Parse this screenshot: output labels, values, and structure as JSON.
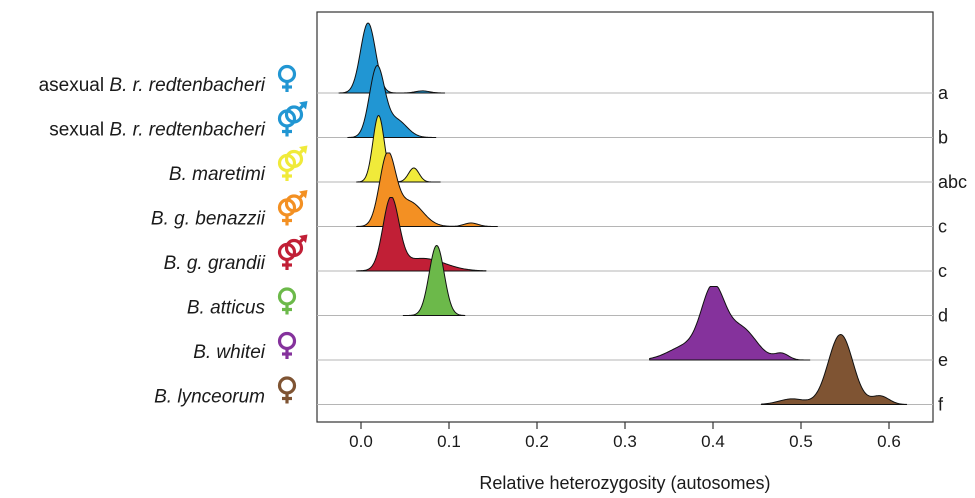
{
  "chart_data": {
    "type": "ridgeline",
    "title": "",
    "xlabel": "Relative heterozygosity (autosomes)",
    "ylabel": "",
    "xlim": [
      -0.05,
      0.65
    ],
    "x_ticks": [
      "0.0",
      "0.1",
      "0.2",
      "0.3",
      "0.4",
      "0.5",
      "0.6"
    ],
    "x_tick_values": [
      0,
      0.1,
      0.2,
      0.3,
      0.4,
      0.5,
      0.6
    ],
    "grid": "horizontal baselines per ridge",
    "series": [
      {
        "prefix": "asexual ",
        "name": "B. r. redtenbacheri",
        "sex_symbols": [
          "female"
        ],
        "color": "#2196d3",
        "group": "a",
        "range": [
          -0.025,
          0.095
        ],
        "components": [
          {
            "center": 0.008,
            "sd": 0.0085,
            "height": 1.0
          },
          {
            "center": 0.07,
            "sd": 0.008,
            "height": 0.03
          }
        ]
      },
      {
        "prefix": "sexual ",
        "name": "B. r. redtenbacheri",
        "sex_symbols": [
          "female",
          "male"
        ],
        "color": "#2196d3",
        "group": "b",
        "range": [
          -0.015,
          0.085
        ],
        "components": [
          {
            "center": 0.018,
            "sd": 0.0085,
            "height": 0.98
          },
          {
            "center": 0.04,
            "sd": 0.012,
            "height": 0.25
          }
        ]
      },
      {
        "prefix": "",
        "name": "B. maretimi",
        "sex_symbols": [
          "female",
          "male"
        ],
        "color": "#f0ea3a",
        "group": "abc",
        "range": [
          -0.005,
          0.09
        ],
        "components": [
          {
            "center": 0.02,
            "sd": 0.0065,
            "height": 0.95
          },
          {
            "center": 0.06,
            "sd": 0.006,
            "height": 0.2
          }
        ]
      },
      {
        "prefix": "",
        "name": "B. g. benazzii",
        "sex_symbols": [
          "female",
          "male"
        ],
        "color": "#f39023",
        "group": "c",
        "range": [
          -0.005,
          0.155
        ],
        "components": [
          {
            "center": 0.03,
            "sd": 0.009,
            "height": 0.98
          },
          {
            "center": 0.055,
            "sd": 0.015,
            "height": 0.35
          },
          {
            "center": 0.125,
            "sd": 0.008,
            "height": 0.05
          }
        ]
      },
      {
        "prefix": "",
        "name": "B. g. grandii",
        "sex_symbols": [
          "female",
          "male"
        ],
        "color": "#c11f36",
        "group": "c",
        "range": [
          -0.005,
          0.142
        ],
        "components": [
          {
            "center": 0.034,
            "sd": 0.009,
            "height": 1.0
          },
          {
            "center": 0.07,
            "sd": 0.025,
            "height": 0.18
          }
        ]
      },
      {
        "prefix": "",
        "name": "B. atticus",
        "sex_symbols": [
          "female"
        ],
        "color": "#6cb94a",
        "group": "d",
        "range": [
          0.048,
          0.118
        ],
        "components": [
          {
            "center": 0.086,
            "sd": 0.0085,
            "height": 1.0
          }
        ]
      },
      {
        "prefix": "",
        "name": "B. whitei",
        "sex_symbols": [
          "female"
        ],
        "color": "#85329c",
        "group": "e",
        "range": [
          0.328,
          0.51
        ],
        "components": [
          {
            "center": 0.4,
            "sd": 0.013,
            "height": 0.95
          },
          {
            "center": 0.432,
            "sd": 0.017,
            "height": 0.45
          },
          {
            "center": 0.37,
            "sd": 0.02,
            "height": 0.2
          },
          {
            "center": 0.478,
            "sd": 0.008,
            "height": 0.09
          }
        ]
      },
      {
        "prefix": "",
        "name": "B. lynceorum",
        "sex_symbols": [
          "female"
        ],
        "color": "#7f5433",
        "group": "f",
        "range": [
          0.455,
          0.62
        ],
        "components": [
          {
            "center": 0.545,
            "sd": 0.014,
            "height": 1.0
          },
          {
            "center": 0.59,
            "sd": 0.01,
            "height": 0.12
          },
          {
            "center": 0.49,
            "sd": 0.015,
            "height": 0.08
          }
        ]
      }
    ]
  }
}
